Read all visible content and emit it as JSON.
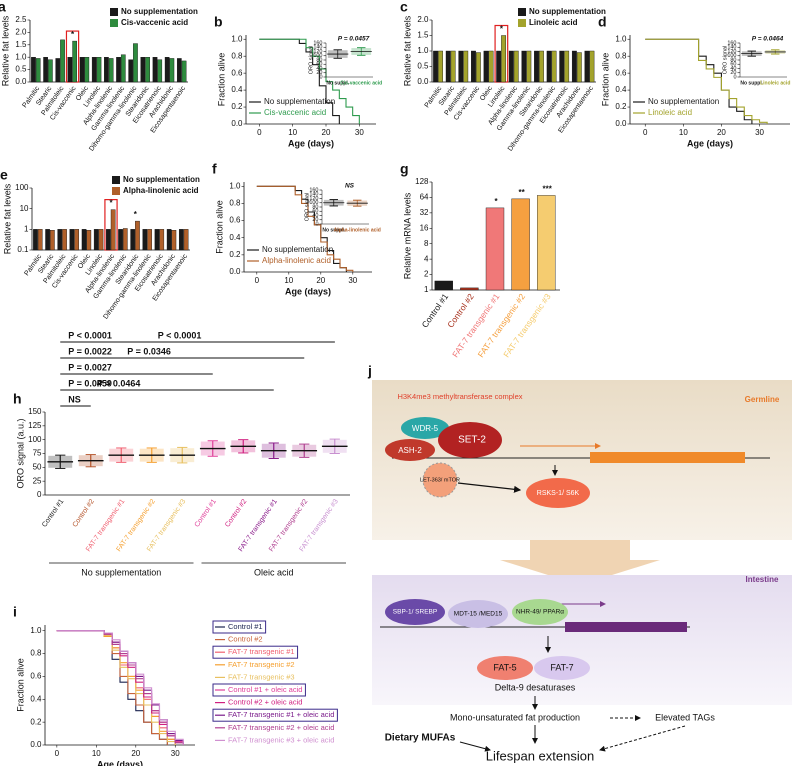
{
  "chart_data": [
    {
      "label": "a",
      "type": "bar",
      "y_label": "Relative fat levels",
      "categories": [
        "Palmitic",
        "Stearic",
        "Palmitoleic",
        "Cis-vaccenic",
        "Oleic",
        "Linoleic",
        "Alpha-linolenic",
        "Gamma-linolenic",
        "Dihomo-gamma-linolenic",
        "Stearidonic",
        "Eicosatrienoic",
        "Arachidonic",
        "Eicosapentaenoic"
      ],
      "series": [
        {
          "name": "No supplementation",
          "color": "#1a1a1a",
          "values": [
            1.0,
            1.0,
            0.95,
            1.0,
            1.0,
            1.0,
            1.0,
            1.0,
            0.9,
            1.0,
            1.0,
            1.0,
            0.95
          ]
        },
        {
          "name": "Cis-vaccenic acid",
          "color": "#2e8b3e",
          "values": [
            0.95,
            0.9,
            1.7,
            1.65,
            1.0,
            1.0,
            0.95,
            1.1,
            1.55,
            1.0,
            0.9,
            0.95,
            0.85
          ]
        }
      ],
      "ylim": [
        0,
        2.5
      ],
      "yticks": [
        {
          "value": 0,
          "label": "0.0"
        },
        0.5,
        {
          "value": 1,
          "label": "1.0"
        },
        1.5,
        {
          "value": 2,
          "label": "2.0"
        },
        2.5
      ],
      "highlight": "Cis-vaccenic",
      "annotations": [
        {
          "category": "Cis-vaccenic",
          "text": "*"
        }
      ],
      "legend": "upper right"
    },
    {
      "label": "b",
      "type": "line",
      "step": true,
      "x_label": "Age (days)",
      "y_label": "Fraction alive",
      "x": [
        0,
        10,
        12,
        14,
        16,
        18,
        20,
        22,
        24,
        26,
        28,
        30
      ],
      "series": [
        {
          "name": "No supplementation",
          "color": "#1a1a1a",
          "values": [
            1,
            1,
            0.95,
            0.85,
            0.7,
            0.45,
            0.25,
            0.1,
            0,
            null,
            null,
            null
          ]
        },
        {
          "name": "Cis-vaccenic acid",
          "color": "#2e9b4e",
          "values": [
            1,
            1,
            1,
            0.9,
            0.8,
            0.65,
            0.5,
            0.4,
            0.3,
            0.2,
            0.1,
            0
          ]
        }
      ],
      "xlim": [
        -4,
        35
      ],
      "xticks": [
        0,
        10,
        20,
        30
      ],
      "ylim": [
        0,
        1.05
      ],
      "yticks": [
        {
          "value": 0,
          "label": "0.0"
        },
        0.2,
        0.4,
        0.6,
        0.8,
        {
          "value": 1,
          "label": "1.0"
        }
      ],
      "legend": "lower left",
      "inset": {
        "type": "strip",
        "y_label": "ORO signal",
        "categories": [
          "No suppl.",
          "Cis-vaccenic acid"
        ],
        "colors": [
          "#1a1a1a",
          "#2e9b4e"
        ],
        "values": [
          108,
          120
        ],
        "sd": [
          20,
          18
        ],
        "ylim": [
          0,
          160
        ],
        "yticks": [
          0,
          20,
          40,
          60,
          80,
          100,
          120,
          140,
          160
        ],
        "annotation": "P = 0.0457"
      }
    },
    {
      "label": "c",
      "type": "bar",
      "y_label": "Relative fat levels",
      "categories": [
        "Palmitic",
        "Stearic",
        "Palmitoleic",
        "Cis-vaccenic",
        "Oleic",
        "Linoleic",
        "Alpha-linolenic",
        "Gamma-linolenic",
        "Stearidonic",
        "Dihomo-gamma-linolenic",
        "Eicosatrienoic",
        "Arachidonic",
        "Eicosapentaenoic"
      ],
      "series": [
        {
          "name": "No supplementation",
          "color": "#1a1a1a",
          "values": [
            1.0,
            1.0,
            1.0,
            1.0,
            1.0,
            1.0,
            1.0,
            1.0,
            1.0,
            1.0,
            1.0,
            1.0,
            1.0
          ]
        },
        {
          "name": "Linoleic acid",
          "color": "#a3a32c",
          "values": [
            1.0,
            1.0,
            1.0,
            0.95,
            1.0,
            1.5,
            1.0,
            1.0,
            1.0,
            1.0,
            1.0,
            0.95,
            1.0
          ]
        }
      ],
      "ylim": [
        0,
        2.0
      ],
      "yticks": [
        {
          "value": 0,
          "label": "0.0"
        },
        0.5,
        {
          "value": 1,
          "label": "1.0"
        },
        1.5,
        {
          "value": 2,
          "label": "2.0"
        }
      ],
      "highlight": "Linoleic",
      "annotations": [
        {
          "category": "Linoleic",
          "text": "*"
        }
      ],
      "legend": "upper right"
    },
    {
      "label": "d",
      "type": "line",
      "step": true,
      "x_label": "Age (days)",
      "y_label": "Fraction alive",
      "x": [
        0,
        10,
        12,
        14,
        16,
        18,
        20,
        22,
        24,
        26,
        28,
        30,
        32
      ],
      "series": [
        {
          "name": "No supplementation",
          "color": "#1a1a1a",
          "values": [
            1,
            1,
            1,
            0.8,
            0.7,
            0.6,
            0.4,
            0.2,
            0.15,
            0.05,
            0,
            null,
            null
          ]
        },
        {
          "name": "Linoleic acid",
          "color": "#a3a32c",
          "values": [
            1,
            1,
            1,
            0.75,
            0.65,
            0.55,
            0.4,
            0.3,
            0.2,
            0.1,
            0.05,
            0.02,
            0
          ]
        }
      ],
      "xlim": [
        -4,
        38
      ],
      "xticks": [
        0,
        10,
        20,
        30
      ],
      "ylim": [
        0,
        1.05
      ],
      "yticks": [
        {
          "value": 0,
          "label": "0.0"
        },
        0.2,
        0.4,
        0.6,
        0.8,
        {
          "value": 1,
          "label": "1.0"
        }
      ],
      "legend": "lower left",
      "inset": {
        "type": "strip",
        "y_label": "ORO signal",
        "categories": [
          "No suppl.",
          "Linoleic acid"
        ],
        "colors": [
          "#1a1a1a",
          "#a3a32c"
        ],
        "values": [
          110,
          118
        ],
        "sd": [
          12,
          10
        ],
        "ylim": [
          0,
          160
        ],
        "yticks": [
          0,
          20,
          40,
          60,
          80,
          100,
          120,
          140,
          160
        ],
        "annotation": "P = 0.0464"
      }
    },
    {
      "label": "e",
      "type": "bar",
      "y_label": "Relative fat levels",
      "log_scale": true,
      "categories": [
        "Palmitic",
        "Stearic",
        "Palmitoleic",
        "Cis-vaccenic",
        "Oleic",
        "Linoleic",
        "Alpha-linolenic",
        "Gamma-linolenic",
        "Stearidonic",
        "Dihomo-gamma-linolenic",
        "Eicosatrienoic",
        "Arachidonic",
        "Eicosapentaenoic"
      ],
      "series": [
        {
          "name": "No supplementation",
          "color": "#1a1a1a",
          "values": [
            1,
            1,
            1,
            1,
            1,
            1,
            1,
            1,
            1,
            1,
            1,
            1,
            1
          ]
        },
        {
          "name": "Alpha-linolenic acid",
          "color": "#b0602a",
          "values": [
            1,
            0.9,
            1,
            1,
            0.9,
            1,
            9,
            1.1,
            2.5,
            1,
            1,
            0.9,
            1
          ]
        }
      ],
      "ylim": [
        0.1,
        100
      ],
      "yticks": [
        0.1,
        1,
        10,
        100
      ],
      "highlight": "Alpha-linolenic",
      "annotations": [
        {
          "category": "Alpha-linolenic",
          "text": "*"
        },
        {
          "category": "Stearidonic",
          "text": "*"
        }
      ],
      "legend": "upper right"
    },
    {
      "label": "f",
      "type": "line",
      "step": true,
      "x_label": "Age (days)",
      "y_label": "Fraction alive",
      "x": [
        0,
        10,
        12,
        14,
        16,
        18,
        20,
        22,
        24,
        26,
        28,
        30,
        32
      ],
      "series": [
        {
          "name": "No supplementation",
          "color": "#1a1a1a",
          "values": [
            1,
            1,
            0.95,
            0.85,
            0.7,
            0.55,
            0.4,
            0.25,
            0.1,
            0.05,
            0,
            null,
            null
          ]
        },
        {
          "name": "Alpha-linolenic acid",
          "color": "#b0602a",
          "values": [
            1,
            1,
            0.9,
            0.8,
            0.65,
            0.55,
            0.35,
            0.2,
            0.15,
            0.05,
            0.02,
            0,
            null
          ]
        }
      ],
      "xlim": [
        -4,
        36
      ],
      "xticks": [
        0,
        10,
        20,
        30
      ],
      "ylim": [
        0,
        1.05
      ],
      "yticks": [
        {
          "value": 0,
          "label": "0.0"
        },
        0.2,
        0.4,
        0.6,
        0.8,
        {
          "value": 1,
          "label": "1.0"
        }
      ],
      "legend": "lower left",
      "inset": {
        "type": "strip",
        "y_label": "ORO signal",
        "categories": [
          "No suppl.",
          "Alpha-linolenic acid"
        ],
        "colors": [
          "#1a1a1a",
          "#b0602a"
        ],
        "values": [
          100,
          98
        ],
        "sd": [
          15,
          14
        ],
        "ylim": [
          0,
          160
        ],
        "yticks": [
          0,
          20,
          40,
          60,
          80,
          100,
          120,
          140,
          160
        ],
        "annotation": "NS"
      }
    },
    {
      "label": "g",
      "type": "bar",
      "y_label": "Relative mRNA levels",
      "log_scale": true,
      "categories": [
        "Control #1",
        "Control #2",
        "FAT-7 transgenic #1",
        "FAT-7 transgenic #2",
        "FAT-7 transgenic #3"
      ],
      "values": [
        1.5,
        1.1,
        40,
        60,
        70
      ],
      "colors": [
        "#1a1a1a",
        "#a8321e",
        "#f07878",
        "#f5a040",
        "#f5cc70"
      ],
      "ylim": [
        1,
        128
      ],
      "yticks": [
        1,
        2,
        4,
        8,
        16,
        32,
        64,
        128
      ],
      "annotations": [
        {
          "category": "FAT-7 transgenic #1",
          "text": "*"
        },
        {
          "category": "FAT-7 transgenic #2",
          "text": "**"
        },
        {
          "category": "FAT-7 transgenic #3",
          "text": "***"
        }
      ]
    },
    {
      "label": "h",
      "type": "strip",
      "y_label": "ORO signal (a.u.)",
      "categories": [
        "Control #1",
        "Control #2",
        "FAT-7 transgenic #1",
        "FAT-7 transgenic #2",
        "FAT-7 transgenic #3",
        "Control #1",
        "Control #2",
        "FAT-7 transgenic #1",
        "FAT-7 transgenic #2",
        "FAT-7 transgenic #3"
      ],
      "colors": [
        "#1a1a1a",
        "#b5542a",
        "#f06070",
        "#f5a030",
        "#e8c060",
        "#e0409a",
        "#d02080",
        "#8a1a8a",
        "#b04090",
        "#c890d0"
      ],
      "values": [
        60,
        62,
        72,
        72,
        72,
        84,
        88,
        80,
        80,
        88
      ],
      "sd": [
        12,
        11,
        13,
        13,
        14,
        14,
        12,
        14,
        12,
        13
      ],
      "ylim": [
        0,
        150
      ],
      "yticks": [
        0,
        25,
        50,
        75,
        100,
        125,
        150
      ],
      "groups": [
        "No supplementation",
        "Oleic acid"
      ],
      "annotations": [
        "P < 0.0001",
        "P < 0.0001",
        "P = 0.0022",
        "P = 0.0346",
        "P = 0.0027",
        "P = 0.0464",
        "P = 0.0459",
        "NS"
      ]
    },
    {
      "label": "i",
      "type": "line",
      "step": true,
      "x_label": "Age (days)",
      "y_label": "Fraction alive",
      "x": [
        0,
        10,
        12,
        14,
        16,
        18,
        20,
        22,
        24,
        26,
        28,
        30,
        32
      ],
      "series": [
        {
          "name": "Control #1",
          "color": "#1c2450",
          "boxed": true,
          "values": [
            1,
            1,
            0.95,
            0.75,
            0.55,
            0.4,
            0.3,
            0.2,
            0.1,
            0.05,
            0,
            null,
            null
          ]
        },
        {
          "name": "Control #2",
          "color": "#c8643c",
          "boxed": false,
          "values": [
            1,
            1,
            0.95,
            0.8,
            0.6,
            0.45,
            0.35,
            0.2,
            0.1,
            0.05,
            0,
            null,
            null
          ]
        },
        {
          "name": "FAT-7 transgenic #1",
          "color": "#f06070",
          "boxed": true,
          "values": [
            1,
            1,
            0.97,
            0.85,
            0.7,
            0.6,
            0.5,
            0.4,
            0.25,
            0.15,
            0.05,
            0,
            null
          ]
        },
        {
          "name": "FAT-7 transgenic #2",
          "color": "#f5a030",
          "boxed": false,
          "values": [
            1,
            1,
            0.95,
            0.85,
            0.72,
            0.6,
            0.48,
            0.35,
            0.25,
            0.12,
            0.05,
            0,
            null
          ]
        },
        {
          "name": "FAT-7 transgenic #3",
          "color": "#e8c060",
          "boxed": false,
          "values": [
            1,
            1,
            0.96,
            0.83,
            0.68,
            0.58,
            0.45,
            0.35,
            0.2,
            0.1,
            0.03,
            0,
            null
          ]
        },
        {
          "name": "Control #1 + oleic acid",
          "color": "#e0409a",
          "boxed": true,
          "values": [
            1,
            1,
            0.98,
            0.9,
            0.8,
            0.7,
            0.6,
            0.45,
            0.3,
            0.2,
            0.1,
            0.03,
            0
          ]
        },
        {
          "name": "Control #2 + oleic acid",
          "color": "#d02080",
          "boxed": false,
          "values": [
            1,
            1,
            0.97,
            0.88,
            0.78,
            0.68,
            0.55,
            0.42,
            0.28,
            0.18,
            0.08,
            0.02,
            0
          ]
        },
        {
          "name": "FAT-7 transgenic #1 + oleic acid",
          "color": "#7a1a8a",
          "boxed": true,
          "values": [
            1,
            1,
            0.98,
            0.9,
            0.82,
            0.72,
            0.6,
            0.48,
            0.35,
            0.22,
            0.1,
            0.04,
            0
          ]
        },
        {
          "name": "FAT-7 transgenic #2 + oleic acid",
          "color": "#b04090",
          "boxed": false,
          "values": [
            1,
            1,
            0.97,
            0.88,
            0.8,
            0.7,
            0.58,
            0.45,
            0.3,
            0.2,
            0.08,
            0.02,
            0
          ]
        },
        {
          "name": "FAT-7 transgenic #3 + oleic acid",
          "color": "#d090d0",
          "boxed": false,
          "values": [
            1,
            1,
            0.98,
            0.92,
            0.82,
            0.72,
            0.62,
            0.5,
            0.36,
            0.22,
            0.12,
            0.05,
            0
          ]
        }
      ],
      "xlim": [
        -3,
        35
      ],
      "xticks": [
        0,
        10,
        20,
        30
      ],
      "ylim": [
        0,
        1.05
      ],
      "yticks": [
        {
          "value": 0,
          "label": "0.0"
        },
        0.2,
        0.4,
        0.6,
        0.8,
        {
          "value": 1,
          "label": "1.0"
        }
      ],
      "legend": "outside right"
    }
  ],
  "diagram": {
    "label": "j",
    "complex": "H3K4me3 methyltransferase complex",
    "germline": "Germline",
    "wdr5": "WDR-5",
    "ash2": "ASH-2",
    "set2": "SET-2",
    "mtor": "LET-363/ mTOR",
    "s6k": "RSKS-1/ S6K",
    "intestine": "Intestine",
    "srebp": "SBP-1/ SREBP",
    "med15": "MDT-15 /MED15",
    "ppar": "NHR-49/ PPARα",
    "fat5": "FAT-5",
    "fat7": "FAT-7",
    "desaturases": "Delta-9 desaturases",
    "mufa_production": "Mono-unsaturated fat production",
    "tags": "Elevated TAGs",
    "dietary": "Dietary MUFAs",
    "lifespan": "Lifespan extension"
  }
}
